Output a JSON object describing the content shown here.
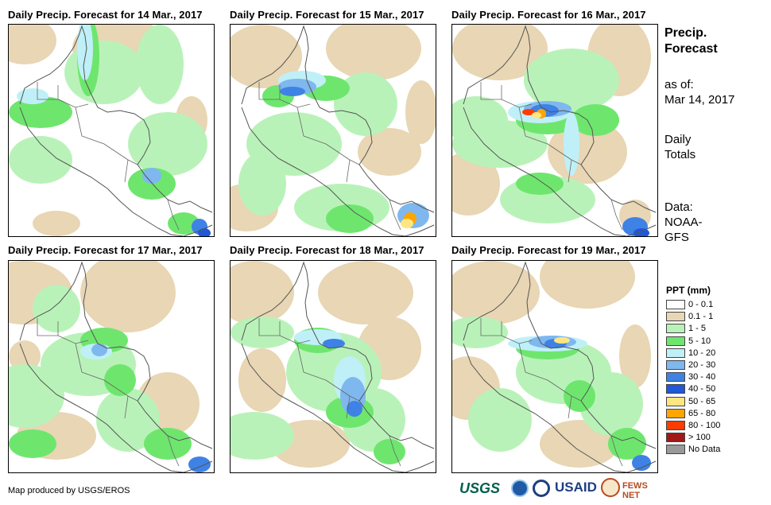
{
  "panels": [
    {
      "title": "Daily Precip. Forecast for 14 Mar., 2017"
    },
    {
      "title": "Daily Precip. Forecast for 15 Mar., 2017"
    },
    {
      "title": "Daily Precip. Forecast for 16 Mar., 2017"
    },
    {
      "title": "Daily Precip. Forecast for 17 Mar., 2017"
    },
    {
      "title": "Daily Precip. Forecast for 18 Mar., 2017"
    },
    {
      "title": "Daily Precip. Forecast for 19 Mar., 2017"
    }
  ],
  "sidebar": {
    "title_line1": "Precip.",
    "title_line2": "Forecast",
    "asof_label": "as of:",
    "asof_date": "Mar 14, 2017",
    "totals_line1": "Daily",
    "totals_line2": "Totals",
    "data_label": "Data:",
    "data_line1": "NOAA-",
    "data_line2": "GFS"
  },
  "legend": {
    "title": "PPT (mm)",
    "items": [
      {
        "label": "0 - 0.1",
        "color": "#ffffff"
      },
      {
        "label": "0.1 - 1",
        "color": "#e8d6b4"
      },
      {
        "label": "1 - 5",
        "color": "#b9f2b9"
      },
      {
        "label": "5 - 10",
        "color": "#6ee66e"
      },
      {
        "label": "10 - 20",
        "color": "#bff0f8"
      },
      {
        "label": "20 - 30",
        "color": "#7fb7ef"
      },
      {
        "label": "30 - 40",
        "color": "#3f82e6"
      },
      {
        "label": "40 - 50",
        "color": "#2158d8"
      },
      {
        "label": "50 - 65",
        "color": "#ffe680"
      },
      {
        "label": "65 - 80",
        "color": "#ffa500"
      },
      {
        "label": "80 - 100",
        "color": "#ff3c00"
      },
      {
        "label": "> 100",
        "color": "#a01818"
      },
      {
        "label": "No Data",
        "color": "#999999"
      }
    ]
  },
  "footer": {
    "credit": "Map produced by USGS/EROS",
    "logo_usgs": "USGS",
    "logo_usaid": "USAID",
    "logo_fews": "FEWS NET"
  }
}
